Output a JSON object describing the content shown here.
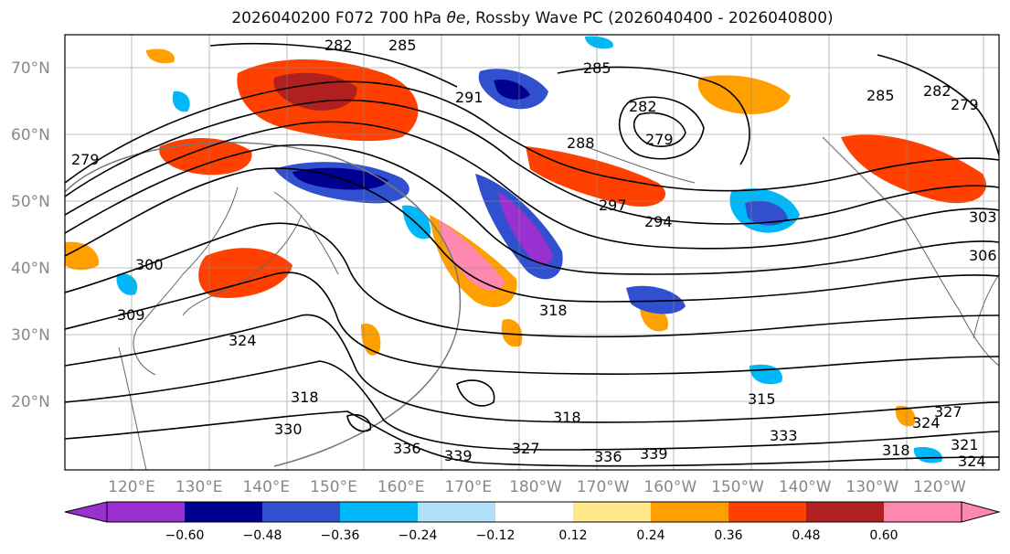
{
  "title": {
    "prefix": "2026040200 F072 700 hPa ",
    "symbol": "θe",
    "suffix": ", Rossby Wave PC (2026040400 - 2026040800)"
  },
  "map": {
    "lat_labels": [
      "70°N",
      "60°N",
      "50°N",
      "40°N",
      "30°N",
      "20°N"
    ],
    "lon_labels": [
      "120°E",
      "130°E",
      "140°E",
      "150°E",
      "160°E",
      "170°E",
      "180°W",
      "170°W",
      "160°W",
      "150°W",
      "140°W",
      "130°W",
      "120°W"
    ],
    "contour_labels": [
      "285",
      "282",
      "291",
      "285",
      "282",
      "279",
      "288",
      "297",
      "294",
      "285",
      "282",
      "279",
      "279",
      "300",
      "309",
      "324",
      "318",
      "303",
      "306",
      "318",
      "330",
      "336",
      "339",
      "327",
      "336",
      "339",
      "318",
      "315",
      "333",
      "327",
      "324",
      "321",
      "318",
      "324"
    ]
  },
  "colorbar": {
    "tick_labels": [
      "−0.60",
      "−0.48",
      "−0.36",
      "−0.24",
      "−0.12",
      "0.12",
      "0.24",
      "0.36",
      "0.48",
      "0.60"
    ],
    "colors": [
      "#9b30d0",
      "#000090",
      "#3050d0",
      "#00b8f8",
      "#b0e0f8",
      "#ffffff",
      "#ffe88a",
      "#ffa000",
      "#ff4000",
      "#b02020",
      "#ff88b0"
    ]
  },
  "colors": {
    "neg_strong": "#9b30d0",
    "neg_dark": "#000090",
    "neg_mid": "#3050d0",
    "neg_light": "#00b8f8",
    "neg_pale": "#b0e0f8",
    "pos_pale": "#ffe88a",
    "pos_light": "#ffa000",
    "pos_mid": "#ff4000",
    "pos_dark": "#b02020",
    "pos_strong": "#ff88b0"
  }
}
